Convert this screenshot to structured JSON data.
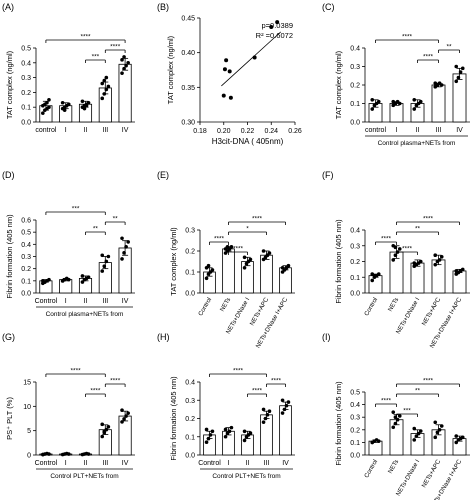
{
  "chart_data": [
    {
      "type": "bar",
      "panel_label": "(A)",
      "ylabel": "TAT complex (ng/ml)",
      "xlabel": "",
      "categories": [
        "control",
        "I",
        "II",
        "III",
        "IV"
      ],
      "values": [
        0.11,
        0.11,
        0.12,
        0.23,
        0.39
      ],
      "errors": [
        0.03,
        0.02,
        0.02,
        0.04,
        0.04
      ],
      "ylim": [
        0.0,
        0.5
      ],
      "yticks": [
        "0.0",
        "0.1",
        "0.2",
        "0.3",
        "0.4",
        "0.5"
      ],
      "points": [
        [
          0.06,
          0.08,
          0.09,
          0.1,
          0.11,
          0.12,
          0.13,
          0.15
        ],
        [
          0.09,
          0.1,
          0.11,
          0.12,
          0.13,
          0.08
        ],
        [
          0.1,
          0.11,
          0.12,
          0.13,
          0.14,
          0.09,
          0.11
        ],
        [
          0.16,
          0.19,
          0.22,
          0.24,
          0.26,
          0.28,
          0.3
        ],
        [
          0.33,
          0.36,
          0.38,
          0.4,
          0.42,
          0.44
        ]
      ],
      "brackets": [
        {
          "from": 0,
          "to": 4,
          "label": "****"
        },
        {
          "from": 3,
          "to": 4,
          "label": "****"
        },
        {
          "from": 2,
          "to": 3,
          "label": "***"
        }
      ]
    },
    {
      "type": "scatter",
      "panel_label": "(B)",
      "ylabel": "TAT complex (ng/ml)",
      "xlabel": "H3cit-DNA ( 405nm)",
      "xlim": [
        0.18,
        0.26
      ],
      "ylim": [
        0.3,
        0.45
      ],
      "xticks": [
        "0.18",
        "0.20",
        "0.22",
        "0.24",
        "0.26"
      ],
      "yticks": [
        "0.30",
        "0.35",
        "0.40",
        "0.45"
      ],
      "x": [
        0.2,
        0.201,
        0.202,
        0.205,
        0.206,
        0.226,
        0.24,
        0.245
      ],
      "y": [
        0.338,
        0.376,
        0.389,
        0.373,
        0.335,
        0.393,
        0.437,
        0.444
      ],
      "fit": {
        "x": [
          0.198,
          0.248
        ],
        "y": [
          0.352,
          0.43
        ]
      },
      "annotations": [
        "p=0.0389",
        "R² =0.6072"
      ]
    },
    {
      "type": "bar",
      "panel_label": "(C)",
      "ylabel": "TAT complex (ng/ml)",
      "xlabel": "Control plasma+NETs from",
      "categories": [
        "control",
        "I",
        "II",
        "III",
        "IV"
      ],
      "values": [
        0.1,
        0.1,
        0.1,
        0.2,
        0.26
      ],
      "errors": [
        0.02,
        0.01,
        0.02,
        0.01,
        0.03
      ],
      "ylim": [
        0.0,
        0.4
      ],
      "yticks": [
        "0.0",
        "0.1",
        "0.2",
        "0.3",
        "0.4"
      ],
      "points": [
        [
          0.07,
          0.09,
          0.1,
          0.11,
          0.12
        ],
        [
          0.09,
          0.1,
          0.11,
          0.1,
          0.11
        ],
        [
          0.07,
          0.09,
          0.1,
          0.11,
          0.12
        ],
        [
          0.19,
          0.2,
          0.21,
          0.2,
          0.21
        ],
        [
          0.22,
          0.24,
          0.27,
          0.29,
          0.3
        ]
      ],
      "brackets": [
        {
          "from": 0,
          "to": 3,
          "label": "****"
        },
        {
          "from": 3,
          "to": 4,
          "label": "**"
        },
        {
          "from": 2,
          "to": 3,
          "label": "****"
        }
      ]
    },
    {
      "type": "bar",
      "panel_label": "(D)",
      "ylabel": "Fibrin formation (405 nm)",
      "xlabel": "Control plasma+NETs from",
      "categories": [
        "Control",
        "I",
        "II",
        "III",
        "IV"
      ],
      "values": [
        0.1,
        0.11,
        0.12,
        0.25,
        0.37
      ],
      "errors": [
        0.01,
        0.01,
        0.02,
        0.05,
        0.06
      ],
      "ylim": [
        0.0,
        0.6
      ],
      "yticks": [
        "0.0",
        "0.1",
        "0.2",
        "0.3",
        "0.4",
        "0.5",
        "0.6"
      ],
      "points": [
        [
          0.08,
          0.09,
          0.1,
          0.11,
          0.1,
          0.09
        ],
        [
          0.1,
          0.11,
          0.12,
          0.11,
          0.1
        ],
        [
          0.09,
          0.11,
          0.12,
          0.13,
          0.14
        ],
        [
          0.18,
          0.22,
          0.26,
          0.3,
          0.31
        ],
        [
          0.28,
          0.33,
          0.38,
          0.42,
          0.45
        ]
      ],
      "brackets": [
        {
          "from": 0,
          "to": 3,
          "label": "***"
        },
        {
          "from": 3,
          "to": 4,
          "label": "**"
        },
        {
          "from": 2,
          "to": 3,
          "label": "**"
        }
      ]
    },
    {
      "type": "bar",
      "panel_label": "(E)",
      "ylabel": "TAT complex (ng/ml)",
      "xlabel": "",
      "categories": [
        "Control",
        "NETs",
        "NETs+DNase I",
        "NETs+APC",
        "NETs+DNase I+APC"
      ],
      "values": [
        0.1,
        0.21,
        0.15,
        0.18,
        0.12
      ],
      "errors": [
        0.02,
        0.01,
        0.02,
        0.02,
        0.01
      ],
      "ylim": [
        0.0,
        0.3
      ],
      "yticks": [
        "0.0",
        "0.1",
        "0.2",
        "0.3"
      ],
      "points": [
        [
          0.07,
          0.09,
          0.1,
          0.11,
          0.12,
          0.13
        ],
        [
          0.19,
          0.2,
          0.21,
          0.22,
          0.21,
          0.22
        ],
        [
          0.12,
          0.14,
          0.15,
          0.16,
          0.17
        ],
        [
          0.16,
          0.17,
          0.18,
          0.19,
          0.2
        ],
        [
          0.1,
          0.11,
          0.12,
          0.13,
          0.12
        ]
      ],
      "brackets": [
        {
          "from": 0,
          "to": 1,
          "label": "****"
        },
        {
          "from": 1,
          "to": 2,
          "label": "****"
        },
        {
          "from": 1,
          "to": 3,
          "label": "*"
        },
        {
          "from": 1,
          "to": 4,
          "label": "****"
        }
      ]
    },
    {
      "type": "bar",
      "panel_label": "(F)",
      "ylabel": "Fibrin formation (405 nm)",
      "xlabel": "",
      "categories": [
        "Control",
        "NETs",
        "NETs+DNase I",
        "NETs+APC",
        "NETs+DNase I+APC"
      ],
      "values": [
        0.11,
        0.26,
        0.19,
        0.21,
        0.14
      ],
      "errors": [
        0.01,
        0.04,
        0.02,
        0.03,
        0.01
      ],
      "ylim": [
        0.0,
        0.4
      ],
      "yticks": [
        "0.0",
        "0.1",
        "0.2",
        "0.3",
        "0.4"
      ],
      "points": [
        [
          0.08,
          0.1,
          0.11,
          0.12,
          0.12,
          0.11
        ],
        [
          0.21,
          0.24,
          0.26,
          0.28,
          0.3,
          0.29
        ],
        [
          0.17,
          0.18,
          0.19,
          0.2,
          0.19
        ],
        [
          0.18,
          0.2,
          0.21,
          0.23,
          0.24
        ],
        [
          0.12,
          0.13,
          0.14,
          0.15,
          0.14
        ]
      ],
      "brackets": [
        {
          "from": 0,
          "to": 1,
          "label": "****"
        },
        {
          "from": 1,
          "to": 2,
          "label": "****"
        },
        {
          "from": 1,
          "to": 3,
          "label": "**"
        },
        {
          "from": 1,
          "to": 4,
          "label": "****"
        }
      ]
    },
    {
      "type": "bar",
      "panel_label": "(G)",
      "ylabel": "PS⁺ PLT (%)",
      "xlabel": "Control PLT+NETs from",
      "categories": [
        "Control",
        "I",
        "II",
        "III",
        "IV"
      ],
      "values": [
        0.2,
        0.2,
        0.2,
        5.2,
        8.0
      ],
      "errors": [
        0.1,
        0.1,
        0.1,
        1.0,
        1.0
      ],
      "ylim": [
        0,
        15
      ],
      "yticks": [
        "0",
        "5",
        "10",
        "15"
      ],
      "points": [
        [
          0.1,
          0.2,
          0.3,
          0.2,
          0.1
        ],
        [
          0.1,
          0.2,
          0.3,
          0.2
        ],
        [
          0.1,
          0.2,
          0.3,
          0.2
        ],
        [
          3.8,
          4.6,
          5.2,
          5.8,
          6.3,
          4.9
        ],
        [
          6.8,
          7.4,
          8.0,
          8.6,
          9.2
        ]
      ],
      "brackets": [
        {
          "from": 0,
          "to": 3,
          "label": "****"
        },
        {
          "from": 3,
          "to": 4,
          "label": "****"
        },
        {
          "from": 2,
          "to": 3,
          "label": "****"
        }
      ]
    },
    {
      "type": "bar",
      "panel_label": "(H)",
      "ylabel": "Fibrin formation (405 nm)",
      "xlabel": "Control PLT+NETs from",
      "categories": [
        "Control",
        "I",
        "II",
        "III",
        "IV"
      ],
      "values": [
        0.11,
        0.13,
        0.11,
        0.22,
        0.27
      ],
      "errors": [
        0.02,
        0.02,
        0.02,
        0.02,
        0.02
      ],
      "ylim": [
        0.0,
        0.4
      ],
      "yticks": [
        "0.0",
        "0.1",
        "0.2",
        "0.3",
        "0.4"
      ],
      "points": [
        [
          0.07,
          0.09,
          0.11,
          0.13,
          0.14
        ],
        [
          0.1,
          0.12,
          0.13,
          0.15,
          0.14
        ],
        [
          0.08,
          0.1,
          0.11,
          0.12,
          0.13
        ],
        [
          0.18,
          0.2,
          0.22,
          0.24,
          0.25
        ],
        [
          0.23,
          0.25,
          0.27,
          0.29,
          0.3
        ]
      ],
      "brackets": [
        {
          "from": 0,
          "to": 3,
          "label": "****"
        },
        {
          "from": 3,
          "to": 4,
          "label": "****"
        },
        {
          "from": 2,
          "to": 3,
          "label": "****"
        }
      ]
    },
    {
      "type": "bar",
      "panel_label": "(I)",
      "ylabel": "Fibrin formation (405 nm)",
      "xlabel": "",
      "categories": [
        "Control",
        "NETs",
        "NETs+DNase I",
        "NETs+APC",
        "NETs+DNase I+APC"
      ],
      "values": [
        0.11,
        0.28,
        0.17,
        0.2,
        0.13
      ],
      "errors": [
        0.01,
        0.04,
        0.03,
        0.04,
        0.02
      ],
      "ylim": [
        0.0,
        0.5
      ],
      "yticks": [
        "0.0",
        "0.1",
        "0.2",
        "0.3",
        "0.4",
        "0.5"
      ],
      "points": [
        [
          0.1,
          0.11,
          0.12,
          0.11,
          0.1
        ],
        [
          0.22,
          0.25,
          0.28,
          0.31,
          0.34,
          0.3
        ],
        [
          0.12,
          0.15,
          0.17,
          0.19,
          0.21
        ],
        [
          0.14,
          0.18,
          0.2,
          0.23,
          0.26
        ],
        [
          0.1,
          0.12,
          0.13,
          0.14,
          0.15
        ]
      ],
      "brackets": [
        {
          "from": 0,
          "to": 1,
          "label": "****"
        },
        {
          "from": 1,
          "to": 2,
          "label": "***"
        },
        {
          "from": 1,
          "to": 3,
          "label": "**"
        },
        {
          "from": 1,
          "to": 4,
          "label": "****"
        }
      ]
    }
  ]
}
